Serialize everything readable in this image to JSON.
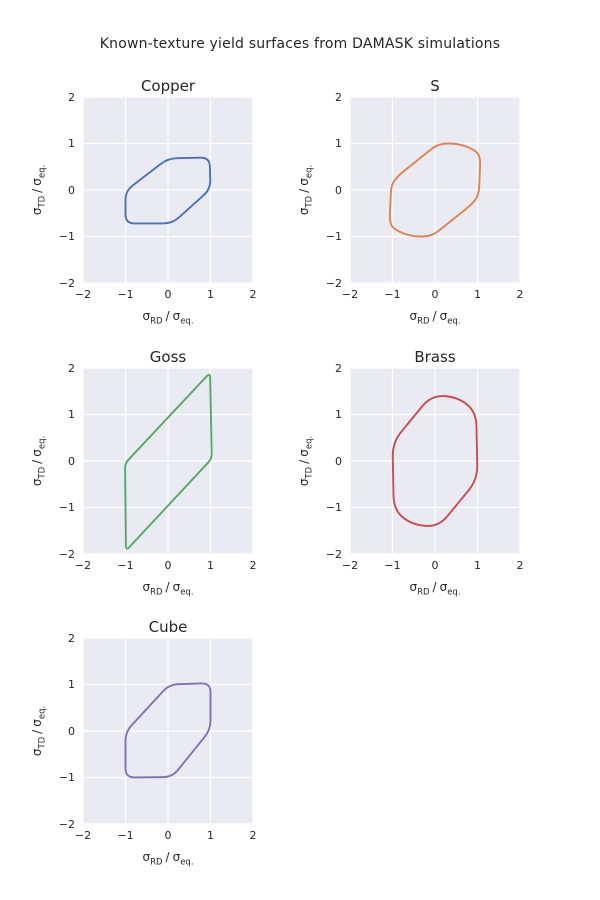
{
  "figure_title": "Known-texture yield surfaces from DAMASK simulations",
  "style": {
    "figure_bg": "#FFFFFF",
    "axes_bg": "#EAEAF2",
    "grid_color": "#FFFFFF",
    "text_color": "#262626"
  },
  "axis": {
    "tick_values": [
      -2,
      -1,
      0,
      1,
      2
    ],
    "x_tick_labels": [
      "−2",
      "−1",
      "0",
      "1",
      "2"
    ],
    "y_tick_labels": [
      "2",
      "1",
      "0",
      "−1",
      "−2"
    ],
    "xlim": [
      -2,
      2
    ],
    "ylim": [
      -2,
      2
    ],
    "xlabel_text": "σRD / σeq.",
    "ylabel_text": "σTD / σeq.",
    "label_parts": {
      "sigma": "σ",
      "x_sub": "RD",
      "y_sub": "TD",
      "sep": "/",
      "eq_sub": "eq."
    }
  },
  "chart_data": [
    {
      "type": "line",
      "title": "Copper",
      "color": "#4C72B0",
      "xlabel": "σ_RD / σ_eq.",
      "ylabel": "σ_TD / σ_eq.",
      "xlim": [
        -2,
        2
      ],
      "ylim": [
        -2,
        2
      ],
      "closed": true,
      "corner_radius_px": 9,
      "vertices": [
        [
          -1.0,
          -0.02
        ],
        [
          0.0,
          0.68
        ],
        [
          0.98,
          0.7
        ],
        [
          1.0,
          0.02
        ],
        [
          0.1,
          -0.72
        ],
        [
          -1.0,
          -0.72
        ]
      ]
    },
    {
      "type": "line",
      "title": "S",
      "color": "#DD8452",
      "xlabel": "σ_RD / σ_eq.",
      "ylabel": "σ_TD / σ_eq.",
      "xlim": [
        -2,
        2
      ],
      "ylim": [
        -2,
        2
      ],
      "closed": true,
      "corner_radius_px": 9,
      "vertices": [
        [
          -1.03,
          0.12
        ],
        [
          -0.85,
          0.32
        ],
        [
          0.08,
          1.0
        ],
        [
          0.55,
          1.0
        ],
        [
          0.97,
          0.85
        ],
        [
          1.07,
          0.68
        ],
        [
          1.03,
          -0.12
        ],
        [
          0.85,
          -0.32
        ],
        [
          -0.08,
          -1.0
        ],
        [
          -0.55,
          -1.0
        ],
        [
          -0.97,
          -0.85
        ],
        [
          -1.07,
          -0.68
        ]
      ]
    },
    {
      "type": "line",
      "title": "Goss",
      "color": "#55A868",
      "xlabel": "σ_RD / σ_eq.",
      "ylabel": "σ_TD / σ_eq.",
      "xlim": [
        -2,
        2
      ],
      "ylim": [
        -2,
        2
      ],
      "closed": true,
      "corner_radius_px": 5,
      "vertices": [
        [
          -1.01,
          -0.05
        ],
        [
          0.99,
          1.9
        ],
        [
          1.03,
          0.05
        ],
        [
          -0.99,
          -1.93
        ]
      ]
    },
    {
      "type": "line",
      "title": "Brass",
      "color": "#C44E52",
      "xlabel": "σ_RD / σ_eq.",
      "ylabel": "σ_TD / σ_eq.",
      "xlim": [
        -2,
        2
      ],
      "ylim": [
        -2,
        2
      ],
      "closed": true,
      "corner_radius_px": 14,
      "vertices": [
        [
          -1.0,
          0.4
        ],
        [
          -0.08,
          1.42
        ],
        [
          0.55,
          1.37
        ],
        [
          0.97,
          1.05
        ],
        [
          1.0,
          -0.4
        ],
        [
          0.08,
          -1.42
        ],
        [
          -0.55,
          -1.37
        ],
        [
          -0.97,
          -1.05
        ]
      ]
    },
    {
      "type": "line",
      "title": "Cube",
      "color": "#8172B3",
      "xlabel": "σ_RD / σ_eq.",
      "ylabel": "σ_TD / σ_eq.",
      "xlim": [
        -2,
        2
      ],
      "ylim": [
        -2,
        2
      ],
      "closed": true,
      "corner_radius_px": 9,
      "vertices": [
        [
          -1.0,
          -0.02
        ],
        [
          0.03,
          1.0
        ],
        [
          1.0,
          1.03
        ],
        [
          1.0,
          0.03
        ],
        [
          0.1,
          -0.99
        ],
        [
          -1.0,
          -1.0
        ]
      ]
    }
  ]
}
